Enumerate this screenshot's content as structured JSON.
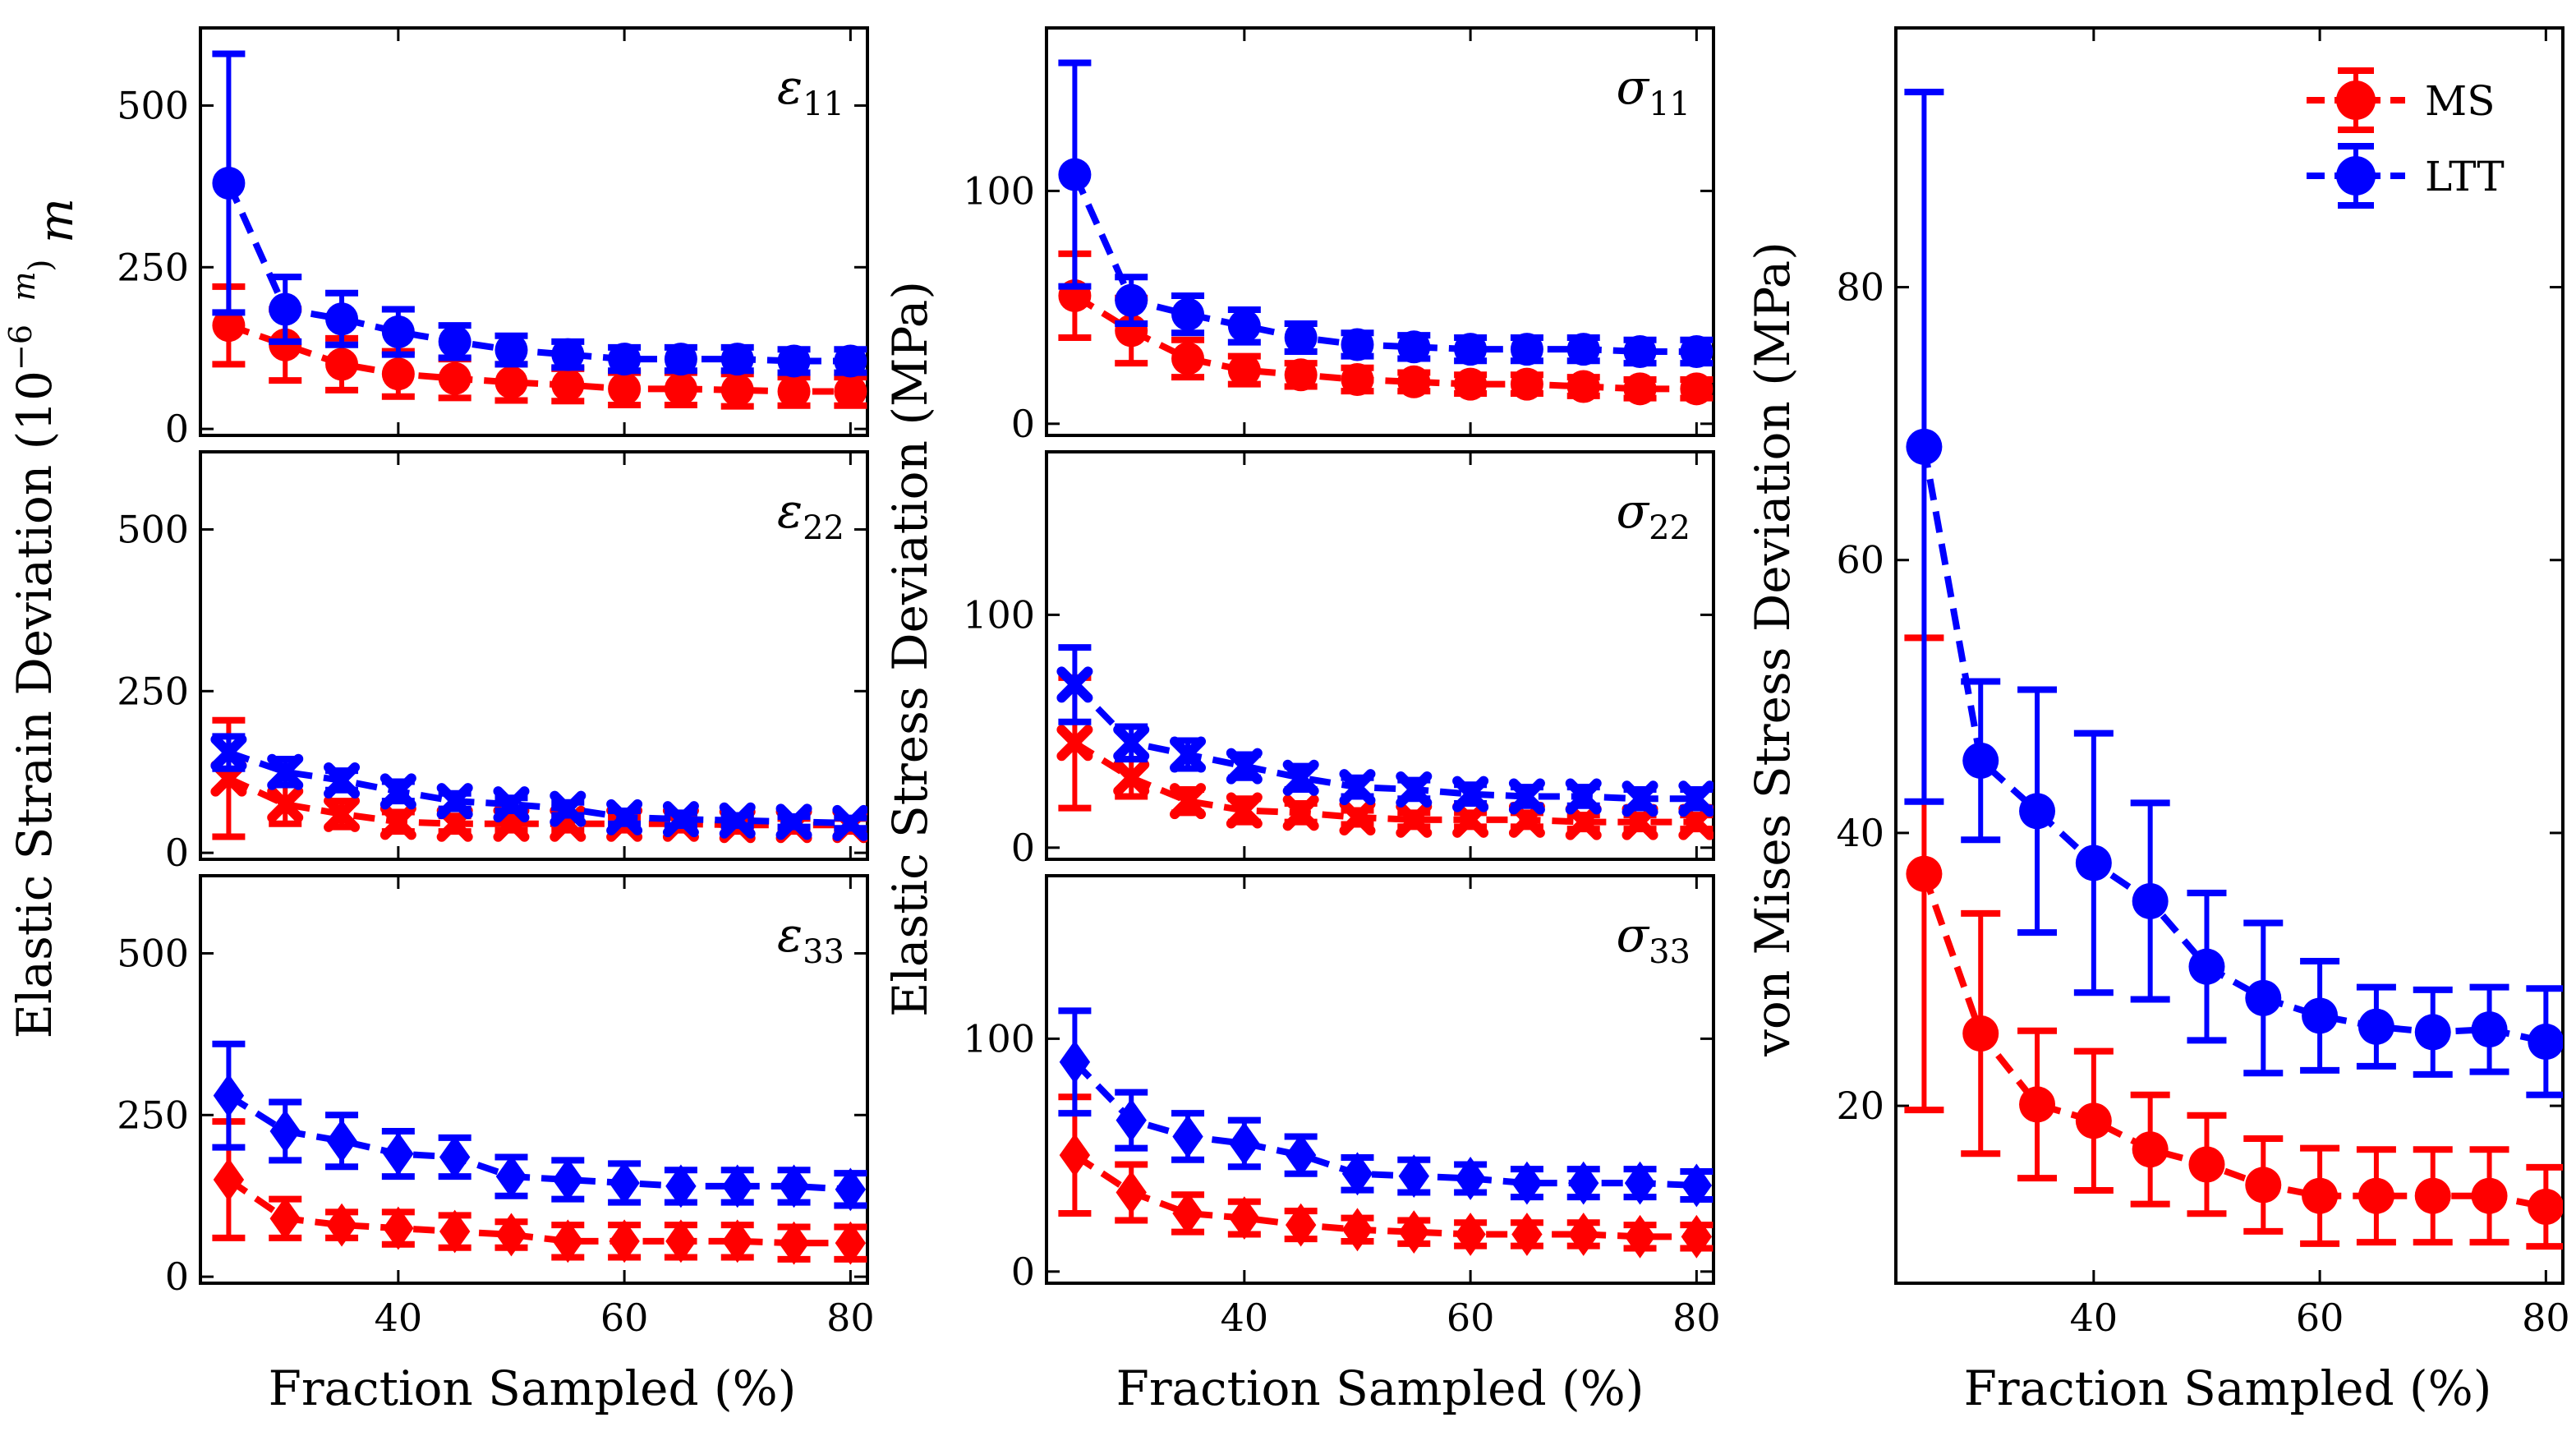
{
  "colors": {
    "MS": "#ff0000",
    "LTT": "#0000ff"
  },
  "legend": [
    {
      "name": "MS",
      "label": "MS"
    },
    {
      "name": "LTT",
      "label": "LTT"
    }
  ],
  "labels": {
    "strain_ylabel": "Elastic Strain Deviation (10",
    "strain_unit_exp": "−6",
    "strain_unit_frac_num": "m",
    "strain_unit_frac_den": "m",
    "strain_ylabel_close": ")",
    "stress_ylabel": "Elastic Stress Deviation (MPa)",
    "vm_ylabel": "von Mises Stress Deviation (MPa)",
    "xlabel": "Fraction Sampled (%)"
  },
  "chart_data": [
    {
      "id": "eps11",
      "type": "errorbar",
      "label_sym": "ε",
      "label_sub": "11",
      "marker": "circle",
      "x": [
        25,
        30,
        35,
        40,
        45,
        50,
        55,
        60,
        65,
        70,
        75,
        80
      ],
      "ylim": [
        -10,
        620
      ],
      "yticks": [
        0,
        250,
        500
      ],
      "xticks": [],
      "series": [
        {
          "name": "MS",
          "values": [
            160,
            130,
            100,
            85,
            78,
            72,
            68,
            62,
            62,
            60,
            58,
            58
          ],
          "errors": [
            60,
            55,
            40,
            35,
            30,
            28,
            25,
            25,
            25,
            25,
            22,
            22
          ]
        },
        {
          "name": "LTT",
          "values": [
            380,
            185,
            170,
            150,
            135,
            122,
            115,
            108,
            108,
            108,
            105,
            105
          ],
          "errors": [
            200,
            50,
            40,
            35,
            25,
            22,
            20,
            18,
            18,
            18,
            18,
            18
          ]
        }
      ]
    },
    {
      "id": "sig11",
      "type": "errorbar",
      "label_sym": "σ",
      "label_sub": "11",
      "marker": "circle",
      "x": [
        25,
        30,
        35,
        40,
        45,
        50,
        55,
        60,
        65,
        70,
        75,
        80
      ],
      "ylim": [
        -5,
        170
      ],
      "yticks": [
        0,
        100
      ],
      "xticks": [],
      "series": [
        {
          "name": "MS",
          "values": [
            55,
            40,
            28,
            23,
            21,
            19,
            18,
            17,
            17,
            16,
            15,
            15
          ],
          "errors": [
            18,
            14,
            8,
            6,
            5,
            5,
            4,
            4,
            4,
            4,
            4,
            4
          ]
        },
        {
          "name": "LTT",
          "values": [
            107,
            53,
            47,
            42,
            37,
            34,
            33,
            32,
            32,
            32,
            31,
            31
          ],
          "errors": [
            48,
            10,
            8,
            7,
            6,
            5,
            5,
            5,
            5,
            5,
            5,
            5
          ]
        }
      ]
    },
    {
      "id": "eps22",
      "type": "errorbar",
      "label_sym": "ε",
      "label_sub": "22",
      "marker": "x",
      "x": [
        25,
        30,
        35,
        40,
        45,
        50,
        55,
        60,
        65,
        70,
        75,
        80
      ],
      "ylim": [
        -10,
        620
      ],
      "yticks": [
        0,
        250,
        500
      ],
      "xticks": [],
      "series": [
        {
          "name": "MS",
          "values": [
            115,
            75,
            60,
            48,
            45,
            45,
            45,
            45,
            45,
            43,
            43,
            43
          ],
          "errors": [
            90,
            30,
            20,
            15,
            12,
            10,
            10,
            10,
            10,
            10,
            10,
            10
          ]
        },
        {
          "name": "LTT",
          "values": [
            155,
            125,
            112,
            95,
            80,
            75,
            68,
            55,
            52,
            50,
            48,
            46
          ],
          "errors": [
            25,
            20,
            15,
            15,
            12,
            10,
            10,
            10,
            10,
            8,
            8,
            8
          ]
        }
      ]
    },
    {
      "id": "sig22",
      "type": "errorbar",
      "label_sym": "σ",
      "label_sub": "22",
      "marker": "x",
      "x": [
        25,
        30,
        35,
        40,
        45,
        50,
        55,
        60,
        65,
        70,
        75,
        80
      ],
      "ylim": [
        -5,
        170
      ],
      "yticks": [
        0,
        100
      ],
      "xticks": [],
      "series": [
        {
          "name": "MS",
          "values": [
            45,
            30,
            20,
            16,
            15,
            13,
            12,
            12,
            12,
            11,
            11,
            11
          ],
          "errors": [
            28,
            8,
            5,
            5,
            4,
            3,
            3,
            3,
            3,
            3,
            3,
            3
          ]
        },
        {
          "name": "LTT",
          "values": [
            70,
            45,
            40,
            35,
            30,
            26,
            25,
            23,
            22,
            22,
            21,
            21
          ],
          "errors": [
            16,
            7,
            6,
            5,
            5,
            4,
            4,
            4,
            4,
            4,
            4,
            4
          ]
        }
      ]
    },
    {
      "id": "eps33",
      "type": "errorbar",
      "label_sym": "ε",
      "label_sub": "33",
      "marker": "diamond",
      "x": [
        25,
        30,
        35,
        40,
        45,
        50,
        55,
        60,
        65,
        70,
        75,
        80
      ],
      "ylim": [
        -10,
        620
      ],
      "yticks": [
        0,
        250,
        500
      ],
      "xticks": [
        40,
        60,
        80
      ],
      "series": [
        {
          "name": "MS",
          "values": [
            150,
            90,
            80,
            75,
            70,
            65,
            55,
            55,
            55,
            55,
            52,
            52
          ],
          "errors": [
            90,
            30,
            20,
            25,
            25,
            20,
            25,
            25,
            25,
            25,
            25,
            25
          ]
        },
        {
          "name": "LTT",
          "values": [
            280,
            225,
            210,
            190,
            185,
            155,
            150,
            145,
            140,
            140,
            140,
            135
          ],
          "errors": [
            80,
            45,
            40,
            35,
            30,
            30,
            30,
            30,
            25,
            25,
            25,
            25
          ]
        }
      ]
    },
    {
      "id": "sig33",
      "type": "errorbar",
      "label_sym": "σ",
      "label_sub": "33",
      "marker": "diamond",
      "x": [
        25,
        30,
        35,
        40,
        45,
        50,
        55,
        60,
        65,
        70,
        75,
        80
      ],
      "ylim": [
        -5,
        170
      ],
      "yticks": [
        0,
        100
      ],
      "xticks": [
        40,
        60,
        80
      ],
      "series": [
        {
          "name": "MS",
          "values": [
            50,
            34,
            25,
            23,
            20,
            18,
            17,
            16,
            16,
            16,
            15,
            15
          ],
          "errors": [
            25,
            12,
            8,
            7,
            6,
            5,
            5,
            5,
            5,
            5,
            5,
            5
          ]
        },
        {
          "name": "LTT",
          "values": [
            90,
            65,
            58,
            55,
            50,
            42,
            41,
            40,
            38,
            38,
            38,
            37
          ],
          "errors": [
            22,
            12,
            10,
            10,
            8,
            7,
            7,
            6,
            6,
            6,
            6,
            6
          ]
        }
      ]
    },
    {
      "id": "vm",
      "type": "errorbar",
      "label_sym": "",
      "label_sub": "",
      "marker": "circle",
      "x": [
        25,
        30,
        35,
        40,
        45,
        50,
        55,
        60,
        65,
        70,
        75,
        80
      ],
      "ylim": [
        7,
        99
      ],
      "yticks": [
        20,
        40,
        60,
        80
      ],
      "xticks": [
        40,
        60,
        80
      ],
      "series": [
        {
          "name": "MS",
          "values": [
            37,
            25.3,
            20.1,
            18.9,
            16.8,
            15.7,
            14.2,
            13.4,
            13.4,
            13.4,
            13.4,
            12.6
          ],
          "errors": [
            17.3,
            8.8,
            5.4,
            5.1,
            4.0,
            3.6,
            3.4,
            3.5,
            3.4,
            3.4,
            3.4,
            2.9
          ]
        },
        {
          "name": "LTT",
          "values": [
            68.3,
            45.3,
            41.6,
            37.8,
            35.0,
            30.2,
            27.9,
            26.6,
            25.8,
            25.4,
            25.6,
            24.7
          ],
          "errors": [
            26,
            5.8,
            8.9,
            9.5,
            7.2,
            5.4,
            5.5,
            4.0,
            2.9,
            3.1,
            3.1,
            3.9
          ]
        }
      ]
    }
  ]
}
